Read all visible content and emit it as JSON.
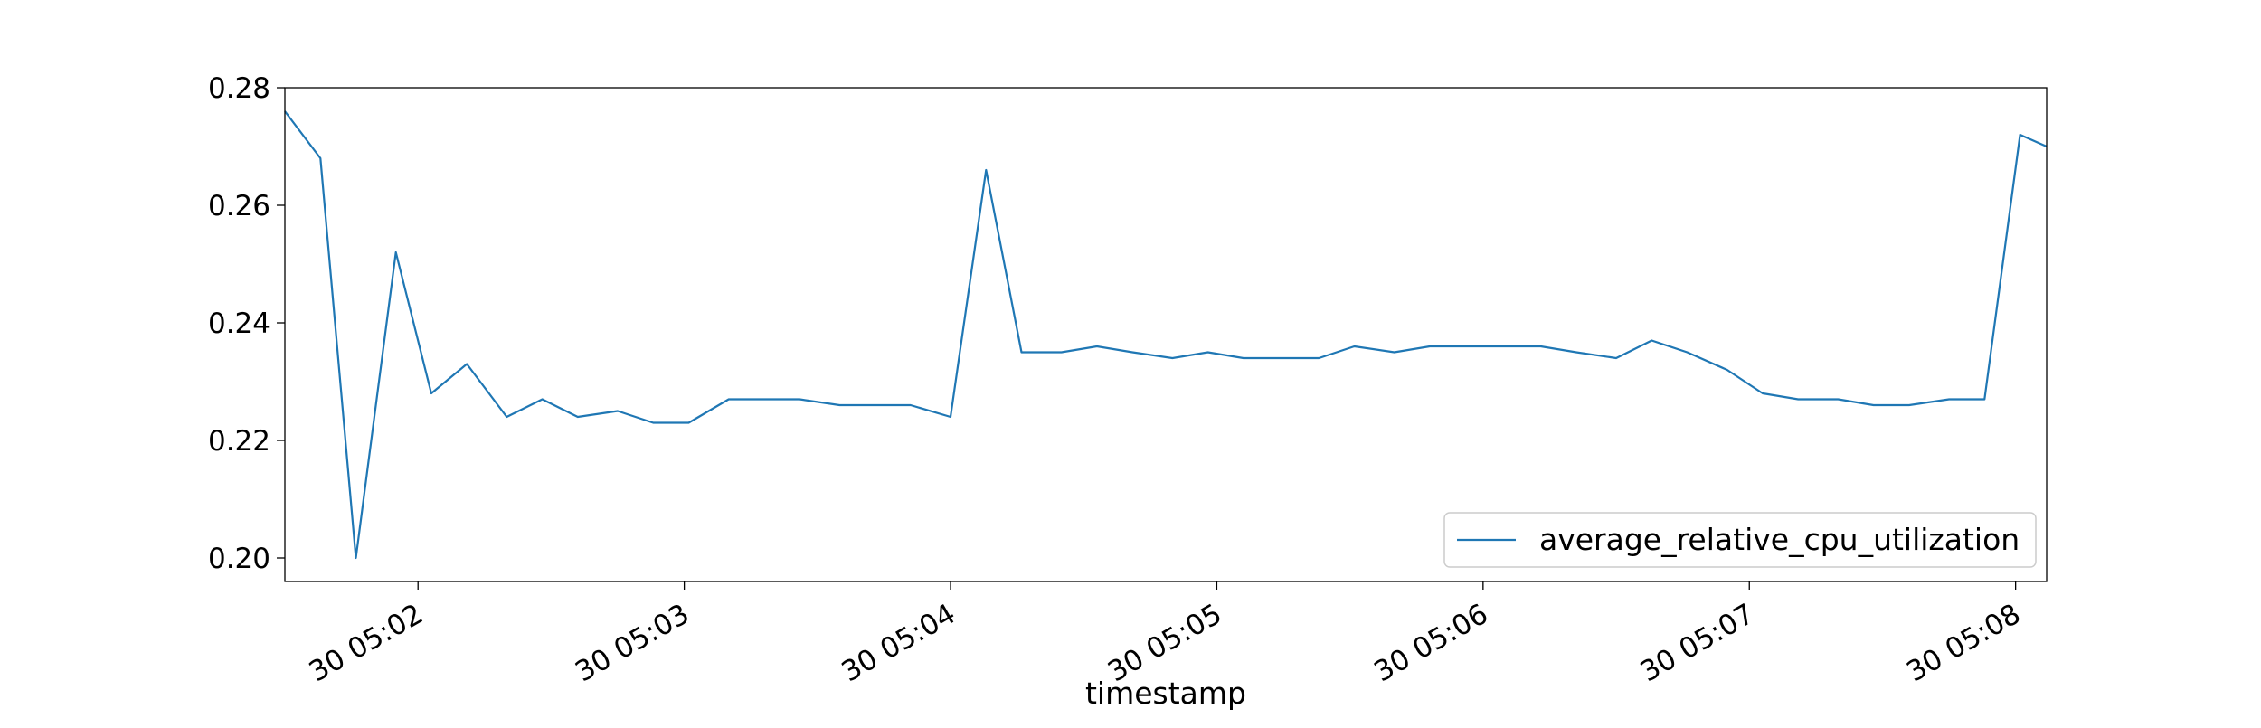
{
  "chart_data": {
    "type": "line",
    "xlabel": "timestamp",
    "ylabel": "",
    "ylim": [
      0.196,
      0.28
    ],
    "yticks": [
      "0.20",
      "0.22",
      "0.24",
      "0.26",
      "0.28"
    ],
    "ytick_values": [
      0.2,
      0.22,
      0.24,
      0.26,
      0.28
    ],
    "xlim": [
      "30 05:01:30",
      "30 05:08:07"
    ],
    "xticks": [
      "30 05:02",
      "30 05:03",
      "30 05:04",
      "30 05:05",
      "30 05:06",
      "30 05:07",
      "30 05:08"
    ],
    "xtick_values": [
      "30 05:02:00",
      "30 05:03:00",
      "30 05:04:00",
      "30 05:05:00",
      "30 05:06:00",
      "30 05:07:00",
      "30 05:08:00"
    ],
    "grid": false,
    "legend_position": "lower-right",
    "series": [
      {
        "name": "average_relative_cpu_utilization",
        "color": "#1f77b4",
        "x": [
          "30 05:01:30",
          "30 05:01:38",
          "30 05:01:46",
          "30 05:01:55",
          "30 05:02:03",
          "30 05:02:11",
          "30 05:02:20",
          "30 05:02:28",
          "30 05:02:36",
          "30 05:02:45",
          "30 05:02:53",
          "30 05:03:01",
          "30 05:03:10",
          "30 05:03:18",
          "30 05:03:26",
          "30 05:03:35",
          "30 05:03:43",
          "30 05:03:51",
          "30 05:04:00",
          "30 05:04:08",
          "30 05:04:16",
          "30 05:04:25",
          "30 05:04:33",
          "30 05:04:41",
          "30 05:04:50",
          "30 05:04:58",
          "30 05:05:06",
          "30 05:05:15",
          "30 05:05:23",
          "30 05:05:31",
          "30 05:05:40",
          "30 05:05:48",
          "30 05:05:56",
          "30 05:06:05",
          "30 05:06:13",
          "30 05:06:21",
          "30 05:06:30",
          "30 05:06:38",
          "30 05:06:46",
          "30 05:06:55",
          "30 05:07:03",
          "30 05:07:11",
          "30 05:07:20",
          "30 05:07:28",
          "30 05:07:36",
          "30 05:07:45",
          "30 05:07:53",
          "30 05:08:01",
          "30 05:08:07"
        ],
        "y": [
          0.276,
          0.268,
          0.2,
          0.252,
          0.228,
          0.233,
          0.224,
          0.227,
          0.224,
          0.225,
          0.223,
          0.223,
          0.227,
          0.227,
          0.227,
          0.226,
          0.226,
          0.226,
          0.224,
          0.266,
          0.235,
          0.235,
          0.236,
          0.235,
          0.234,
          0.235,
          0.234,
          0.234,
          0.234,
          0.236,
          0.235,
          0.236,
          0.236,
          0.236,
          0.236,
          0.235,
          0.234,
          0.237,
          0.235,
          0.232,
          0.228,
          0.227,
          0.227,
          0.226,
          0.226,
          0.227,
          0.227,
          0.272,
          0.27
        ]
      }
    ]
  }
}
